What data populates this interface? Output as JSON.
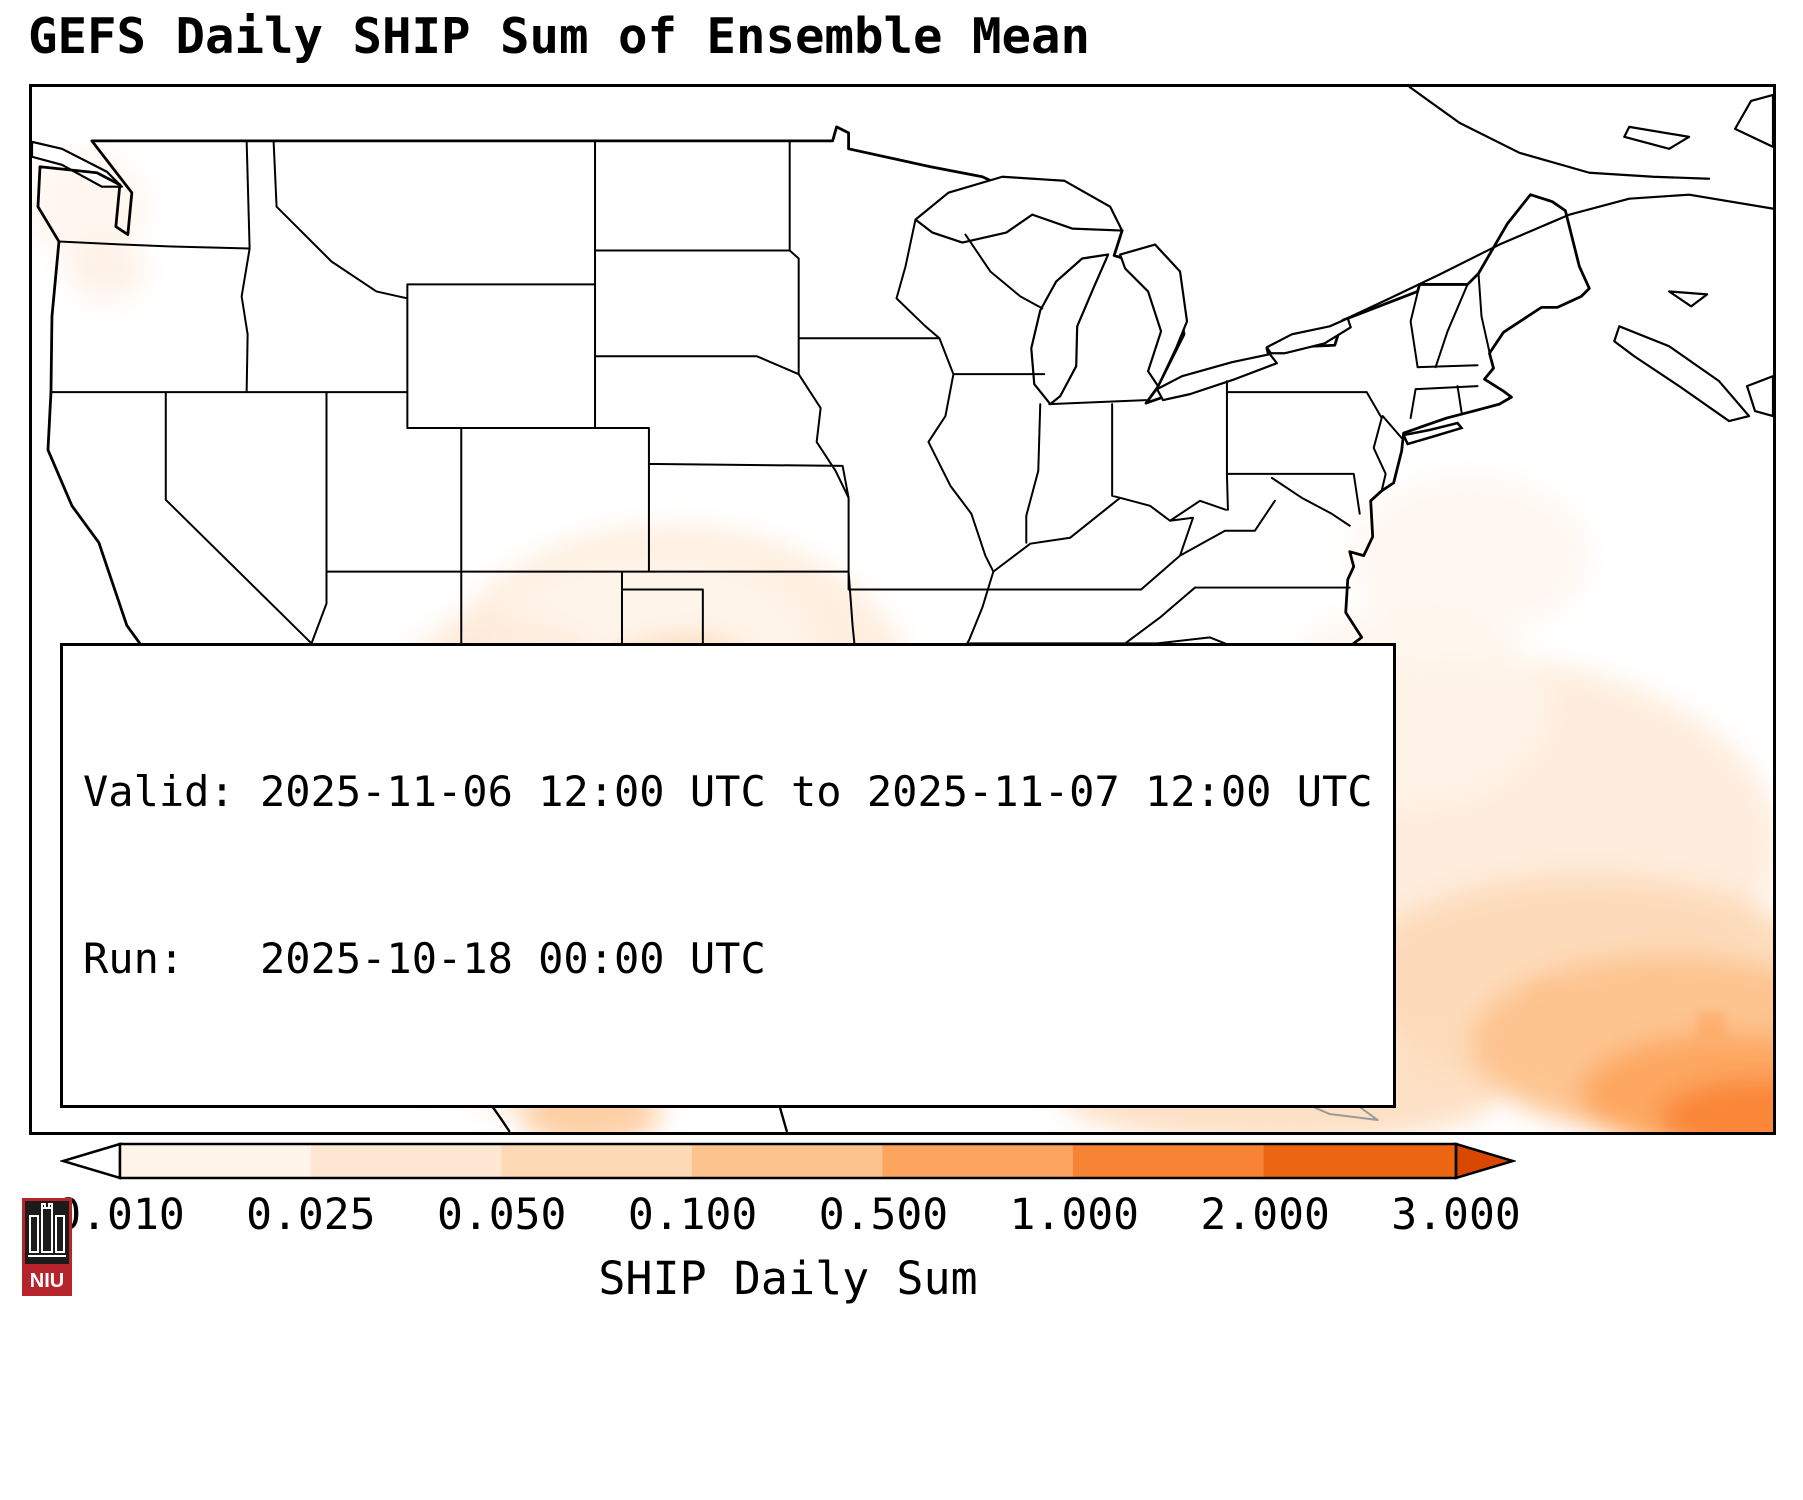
{
  "figure": {
    "title": "GEFS Daily SHIP Sum of Ensemble Mean"
  },
  "info_box": {
    "valid_line": "Valid: 2025-11-06 12:00 UTC to 2025-11-07 12:00 UTC",
    "run_line": "Run:   2025-10-18 00:00 UTC"
  },
  "colorbar": {
    "label": "SHIP Daily Sum",
    "ticks": [
      "0.010",
      "0.025",
      "0.050",
      "0.100",
      "0.500",
      "1.000",
      "2.000",
      "3.000"
    ],
    "segment_colors": [
      "#fff5eb",
      "#fee8d4",
      "#fdd9b6",
      "#fdc38e",
      "#fda55e",
      "#f98334",
      "#ec6511"
    ],
    "under_color": "#ffffff",
    "over_color": "#d94801",
    "outline_color": "#000000"
  },
  "map": {
    "region": "Continental United States with Mexico, Cuba and southeastern Canada",
    "shading_description": "Light-to-strong orange SHIP daily sum maxima over Texas, the western Gulf coast, northwest Mexico and the subtropical Atlantic southeast of Florida",
    "land_outline_color": "#000000",
    "secondary_outline_color": "#9a9a9a"
  },
  "logo": {
    "text": "NIU",
    "color": "#b6252c"
  }
}
